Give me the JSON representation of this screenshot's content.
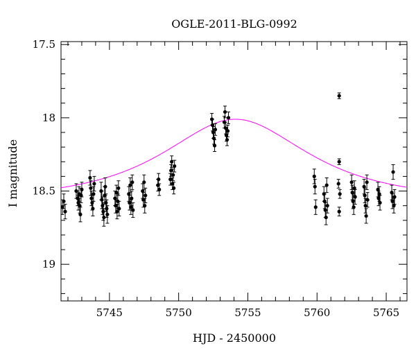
{
  "chart_data": {
    "type": "scatter",
    "title": "OGLE-2011-BLG-0992",
    "xlabel": "HJD - 2450000",
    "ylabel": "I magnitude",
    "xlim": [
      5741.5,
      5766.5
    ],
    "ylim": [
      19.25,
      17.48
    ],
    "y_inverted": true,
    "grid": false,
    "x_major_ticks": [
      5745,
      5750,
      5755,
      5760,
      5765
    ],
    "x_minor_step": 1,
    "y_major_ticks": [
      17.5,
      18,
      18.5,
      19
    ],
    "y_minor_step": 0.1,
    "x_tick_labels": [
      "5745",
      "5750",
      "5755",
      "5760",
      "5765"
    ],
    "y_tick_labels": [
      "17.5",
      "18",
      "18.5",
      "19"
    ],
    "colors": {
      "points": "#000000",
      "model": "#ff00ff",
      "axes": "#000000"
    },
    "model": {
      "kind": "microlensing-point-lens",
      "t0": 5754.1,
      "baseline_mag": 18.56,
      "peak_mag": 18.01,
      "tE": 7.5
    },
    "series": [
      {
        "kind": "data",
        "points": [
          {
            "x": 5741.6,
            "y": 18.61,
            "err": 0.05
          },
          {
            "x": 5741.7,
            "y": 18.57,
            "err": 0.05
          },
          {
            "x": 5741.8,
            "y": 18.64,
            "err": 0.05
          },
          {
            "x": 5742.6,
            "y": 18.5,
            "err": 0.05
          },
          {
            "x": 5742.7,
            "y": 18.55,
            "err": 0.05
          },
          {
            "x": 5742.75,
            "y": 18.58,
            "err": 0.05
          },
          {
            "x": 5742.8,
            "y": 18.52,
            "err": 0.05
          },
          {
            "x": 5742.85,
            "y": 18.6,
            "err": 0.05
          },
          {
            "x": 5742.9,
            "y": 18.66,
            "err": 0.05
          },
          {
            "x": 5742.95,
            "y": 18.53,
            "err": 0.05
          },
          {
            "x": 5743.0,
            "y": 18.49,
            "err": 0.05
          },
          {
            "x": 5743.6,
            "y": 18.41,
            "err": 0.05
          },
          {
            "x": 5743.65,
            "y": 18.48,
            "err": 0.05
          },
          {
            "x": 5743.7,
            "y": 18.55,
            "err": 0.05
          },
          {
            "x": 5743.75,
            "y": 18.58,
            "err": 0.05
          },
          {
            "x": 5743.8,
            "y": 18.62,
            "err": 0.05
          },
          {
            "x": 5743.85,
            "y": 18.52,
            "err": 0.05
          },
          {
            "x": 5743.9,
            "y": 18.45,
            "err": 0.05
          },
          {
            "x": 5744.4,
            "y": 18.5,
            "err": 0.06
          },
          {
            "x": 5744.45,
            "y": 18.56,
            "err": 0.06
          },
          {
            "x": 5744.5,
            "y": 18.6,
            "err": 0.06
          },
          {
            "x": 5744.55,
            "y": 18.64,
            "err": 0.06
          },
          {
            "x": 5744.6,
            "y": 18.68,
            "err": 0.06
          },
          {
            "x": 5744.65,
            "y": 18.53,
            "err": 0.06
          },
          {
            "x": 5744.7,
            "y": 18.47,
            "err": 0.06
          },
          {
            "x": 5744.75,
            "y": 18.58,
            "err": 0.06
          },
          {
            "x": 5744.8,
            "y": 18.62,
            "err": 0.06
          },
          {
            "x": 5744.85,
            "y": 18.66,
            "err": 0.06
          },
          {
            "x": 5745.4,
            "y": 18.55,
            "err": 0.05
          },
          {
            "x": 5745.45,
            "y": 18.6,
            "err": 0.05
          },
          {
            "x": 5745.5,
            "y": 18.51,
            "err": 0.05
          },
          {
            "x": 5745.55,
            "y": 18.64,
            "err": 0.05
          },
          {
            "x": 5745.6,
            "y": 18.57,
            "err": 0.05
          },
          {
            "x": 5745.65,
            "y": 18.48,
            "err": 0.05
          },
          {
            "x": 5745.7,
            "y": 18.62,
            "err": 0.05
          },
          {
            "x": 5746.4,
            "y": 18.52,
            "err": 0.05
          },
          {
            "x": 5746.45,
            "y": 18.58,
            "err": 0.05
          },
          {
            "x": 5746.5,
            "y": 18.46,
            "err": 0.05
          },
          {
            "x": 5746.55,
            "y": 18.61,
            "err": 0.05
          },
          {
            "x": 5746.6,
            "y": 18.55,
            "err": 0.05
          },
          {
            "x": 5746.65,
            "y": 18.44,
            "err": 0.05
          },
          {
            "x": 5746.7,
            "y": 18.63,
            "err": 0.05
          },
          {
            "x": 5747.4,
            "y": 18.5,
            "err": 0.05
          },
          {
            "x": 5747.45,
            "y": 18.56,
            "err": 0.05
          },
          {
            "x": 5747.5,
            "y": 18.44,
            "err": 0.05
          },
          {
            "x": 5747.55,
            "y": 18.6,
            "err": 0.05
          },
          {
            "x": 5747.6,
            "y": 18.53,
            "err": 0.05
          },
          {
            "x": 5748.5,
            "y": 18.46,
            "err": 0.04
          },
          {
            "x": 5748.55,
            "y": 18.42,
            "err": 0.04
          },
          {
            "x": 5748.6,
            "y": 18.49,
            "err": 0.04
          },
          {
            "x": 5749.4,
            "y": 18.42,
            "err": 0.04
          },
          {
            "x": 5749.45,
            "y": 18.36,
            "err": 0.04
          },
          {
            "x": 5749.5,
            "y": 18.3,
            "err": 0.04
          },
          {
            "x": 5749.55,
            "y": 18.45,
            "err": 0.04
          },
          {
            "x": 5749.6,
            "y": 18.39,
            "err": 0.04
          },
          {
            "x": 5749.65,
            "y": 18.48,
            "err": 0.04
          },
          {
            "x": 5749.7,
            "y": 18.33,
            "err": 0.04
          },
          {
            "x": 5752.4,
            "y": 18.01,
            "err": 0.04
          },
          {
            "x": 5752.45,
            "y": 18.05,
            "err": 0.04
          },
          {
            "x": 5752.5,
            "y": 18.1,
            "err": 0.04
          },
          {
            "x": 5752.55,
            "y": 18.14,
            "err": 0.04
          },
          {
            "x": 5752.6,
            "y": 18.19,
            "err": 0.04
          },
          {
            "x": 5752.65,
            "y": 18.08,
            "err": 0.04
          },
          {
            "x": 5753.3,
            "y": 18.03,
            "err": 0.04
          },
          {
            "x": 5753.35,
            "y": 17.96,
            "err": 0.04
          },
          {
            "x": 5753.4,
            "y": 18.07,
            "err": 0.04
          },
          {
            "x": 5753.45,
            "y": 18.12,
            "err": 0.04
          },
          {
            "x": 5753.5,
            "y": 18.15,
            "err": 0.04
          },
          {
            "x": 5753.55,
            "y": 18.09,
            "err": 0.04
          },
          {
            "x": 5753.6,
            "y": 18.0,
            "err": 0.04
          },
          {
            "x": 5759.8,
            "y": 18.4,
            "err": 0.05
          },
          {
            "x": 5759.85,
            "y": 18.47,
            "err": 0.05
          },
          {
            "x": 5759.9,
            "y": 18.61,
            "err": 0.05
          },
          {
            "x": 5760.5,
            "y": 18.52,
            "err": 0.05
          },
          {
            "x": 5760.55,
            "y": 18.57,
            "err": 0.05
          },
          {
            "x": 5760.6,
            "y": 18.63,
            "err": 0.05
          },
          {
            "x": 5760.65,
            "y": 18.68,
            "err": 0.05
          },
          {
            "x": 5760.7,
            "y": 18.46,
            "err": 0.05
          },
          {
            "x": 5760.75,
            "y": 18.6,
            "err": 0.05
          },
          {
            "x": 5761.6,
            "y": 17.85,
            "err": 0.02
          },
          {
            "x": 5761.6,
            "y": 18.3,
            "err": 0.02
          },
          {
            "x": 5761.55,
            "y": 18.45,
            "err": 0.03
          },
          {
            "x": 5761.65,
            "y": 18.52,
            "err": 0.03
          },
          {
            "x": 5761.6,
            "y": 18.64,
            "err": 0.03
          },
          {
            "x": 5762.5,
            "y": 18.44,
            "err": 0.05
          },
          {
            "x": 5762.55,
            "y": 18.51,
            "err": 0.05
          },
          {
            "x": 5762.6,
            "y": 18.57,
            "err": 0.05
          },
          {
            "x": 5762.65,
            "y": 18.61,
            "err": 0.05
          },
          {
            "x": 5762.7,
            "y": 18.48,
            "err": 0.05
          },
          {
            "x": 5762.75,
            "y": 18.54,
            "err": 0.05
          },
          {
            "x": 5763.4,
            "y": 18.47,
            "err": 0.05
          },
          {
            "x": 5763.45,
            "y": 18.53,
            "err": 0.05
          },
          {
            "x": 5763.5,
            "y": 18.6,
            "err": 0.05
          },
          {
            "x": 5763.55,
            "y": 18.67,
            "err": 0.05
          },
          {
            "x": 5763.6,
            "y": 18.44,
            "err": 0.05
          },
          {
            "x": 5763.65,
            "y": 18.56,
            "err": 0.05
          },
          {
            "x": 5764.4,
            "y": 18.49,
            "err": 0.05
          },
          {
            "x": 5764.45,
            "y": 18.55,
            "err": 0.05
          },
          {
            "x": 5764.5,
            "y": 18.52,
            "err": 0.05
          },
          {
            "x": 5764.55,
            "y": 18.58,
            "err": 0.05
          },
          {
            "x": 5765.4,
            "y": 18.51,
            "err": 0.05
          },
          {
            "x": 5765.45,
            "y": 18.57,
            "err": 0.05
          },
          {
            "x": 5765.5,
            "y": 18.37,
            "err": 0.05
          },
          {
            "x": 5765.55,
            "y": 18.6,
            "err": 0.05
          },
          {
            "x": 5765.6,
            "y": 18.54,
            "err": 0.05
          }
        ]
      }
    ]
  }
}
